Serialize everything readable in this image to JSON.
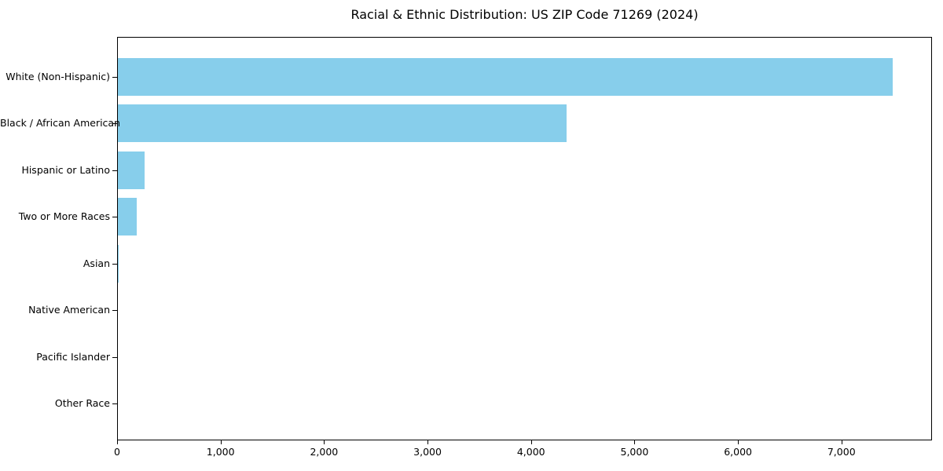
{
  "chart_data": {
    "type": "bar",
    "orientation": "horizontal",
    "title": "Racial & Ethnic Distribution: US ZIP Code 71269 (2024)",
    "categories": [
      "White (Non-Hispanic)",
      "Black / African American",
      "Hispanic or Latino",
      "Two or More Races",
      "Asian",
      "Native American",
      "Pacific Islander",
      "Other Race"
    ],
    "values": [
      7500,
      4345,
      260,
      180,
      8,
      0,
      0,
      0
    ],
    "xlabel": "",
    "ylabel": "",
    "xlim": [
      0,
      7875
    ],
    "x_ticks": [
      0,
      1000,
      2000,
      3000,
      4000,
      5000,
      6000,
      7000
    ],
    "x_tick_labels": [
      "0",
      "1,000",
      "2,000",
      "3,000",
      "4,000",
      "5,000",
      "6,000",
      "7,000"
    ],
    "bar_color": "#87CEEB",
    "text_color": "#000000",
    "grid": false,
    "legend_position": "none",
    "background_color": "#FFFFFF"
  }
}
